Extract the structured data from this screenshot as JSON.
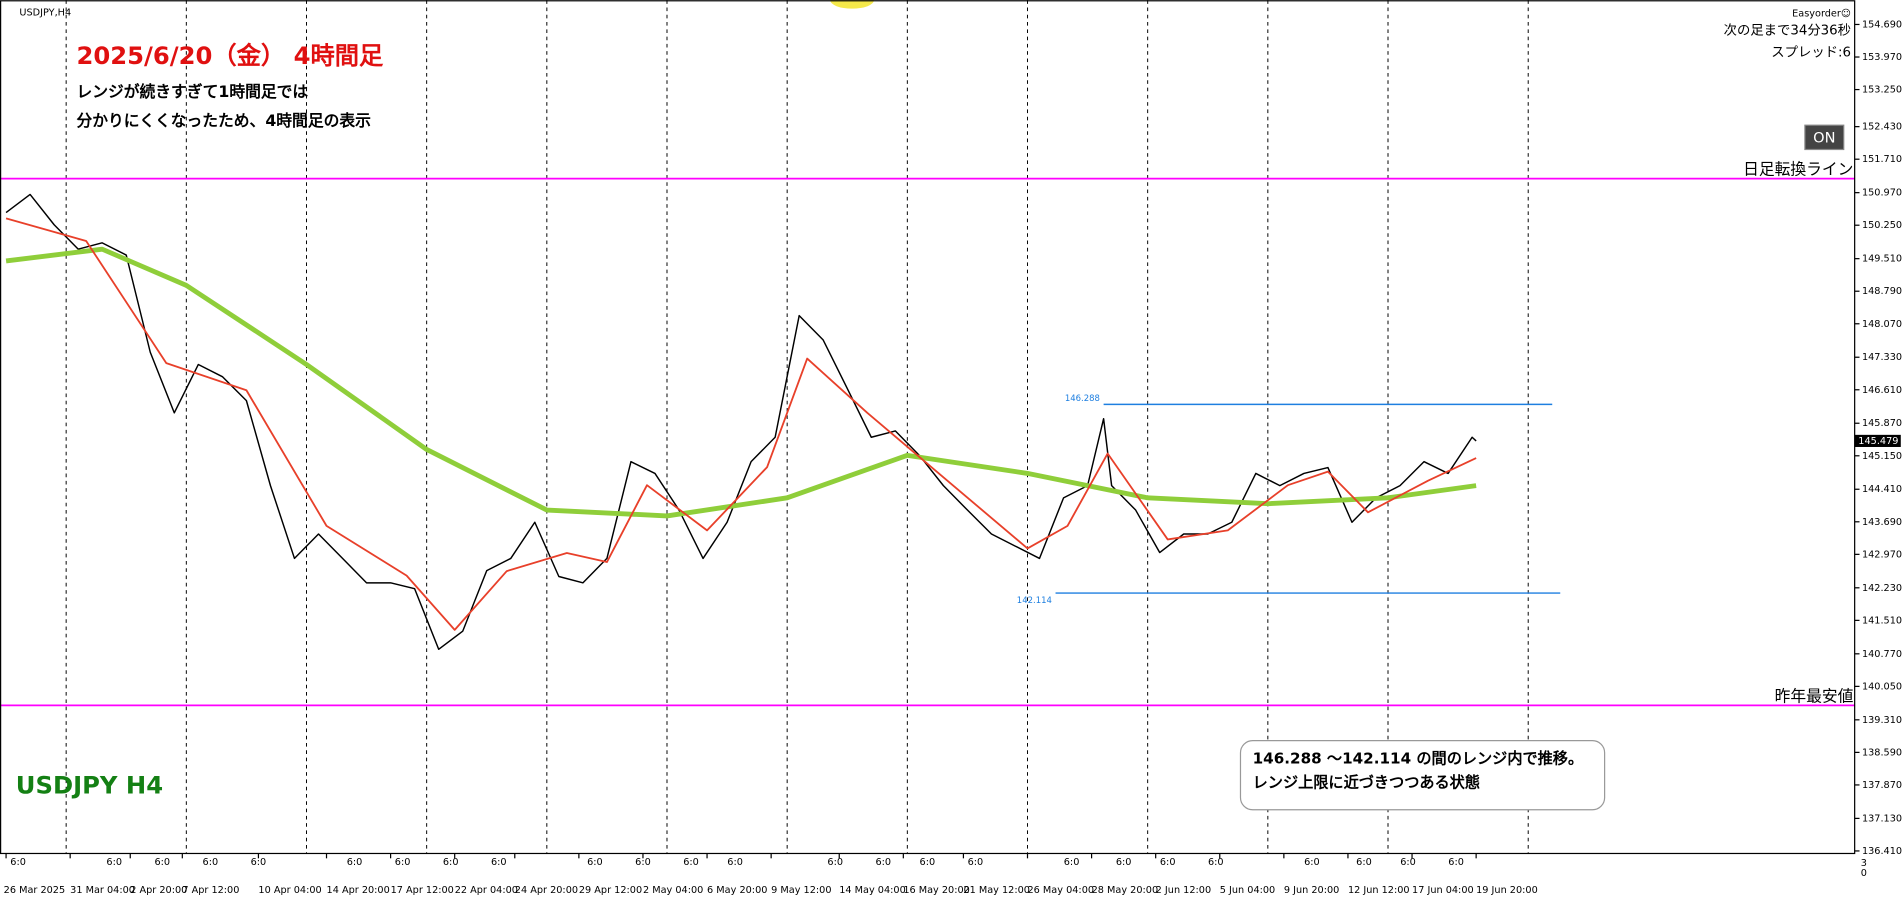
{
  "chart_data": {
    "type": "line",
    "title": "2025/6/20（金）  4時間足",
    "notes": [
      "レンジが続きすぎて1時間足では",
      "分かりにくくなったため、4時間足の表示"
    ],
    "symbol": "USDJPY,H4",
    "watermark": "USDJPY H4",
    "info": [
      "Easyorder☺",
      "次の足まで34分36秒",
      "スプレッド:6"
    ],
    "button": "ON",
    "xlim": [
      -1.515,
      461.5
    ],
    "ylim": [
      136.354,
      155.227
    ],
    "xticks": [
      {
        "value": 0,
        "label": "26 Mar 2025"
      },
      {
        "value": 16,
        "label": "31 Mar 04:00"
      },
      {
        "value": 31,
        "label": "2 Apr 20:00"
      },
      {
        "value": 44,
        "label": "7 Apr 12:00"
      },
      {
        "value": 63,
        "label": "10 Apr 04:00"
      },
      {
        "value": 80,
        "label": "14 Apr 20:00"
      },
      {
        "value": 96,
        "label": "17 Apr 12:00"
      },
      {
        "value": 112,
        "label": "22 Apr 04:00"
      },
      {
        "value": 127,
        "label": "24 Apr 20:00"
      },
      {
        "value": 143,
        "label": "29 Apr 12:00"
      },
      {
        "value": 159,
        "label": "2 May 04:00"
      },
      {
        "value": 175,
        "label": "6 May 20:00"
      },
      {
        "value": 191,
        "label": "9 May 12:00"
      },
      {
        "value": 208,
        "label": "14 May 04:00"
      },
      {
        "value": 224,
        "label": "16 May 20:00"
      },
      {
        "value": 239,
        "label": "21 May 12:00"
      },
      {
        "value": 255,
        "label": "26 May 04:00"
      },
      {
        "value": 271,
        "label": "28 May 20:00"
      },
      {
        "value": 287,
        "label": "2 Jun 12:00"
      },
      {
        "value": 303,
        "label": "5 Jun 04:00"
      },
      {
        "value": 319,
        "label": "9 Jun 20:00"
      },
      {
        "value": 335,
        "label": "12 Jun 12:00"
      },
      {
        "value": 351,
        "label": "17 Jun 04:00"
      },
      {
        "value": 367,
        "label": "19 Jun 20:00"
      }
    ],
    "yticks": [
      {
        "value": 154.69,
        "label": "154.690"
      },
      {
        "value": 153.97,
        "label": "153.970"
      },
      {
        "value": 153.25,
        "label": "153.250"
      },
      {
        "value": 152.43,
        "label": "152.430"
      },
      {
        "value": 151.71,
        "label": "151.710"
      },
      {
        "value": 150.97,
        "label": "150.970"
      },
      {
        "value": 150.25,
        "label": "150.250"
      },
      {
        "value": 149.51,
        "label": "149.510"
      },
      {
        "value": 148.79,
        "label": "148.790"
      },
      {
        "value": 148.07,
        "label": "148.070"
      },
      {
        "value": 147.33,
        "label": "147.330"
      },
      {
        "value": 146.61,
        "label": "146.610"
      },
      {
        "value": 145.87,
        "label": "145.870"
      },
      {
        "value": 145.15,
        "label": "145.150"
      },
      {
        "value": 144.41,
        "label": "144.410"
      },
      {
        "value": 143.69,
        "label": "143.690"
      },
      {
        "value": 142.97,
        "label": "142.970"
      },
      {
        "value": 142.23,
        "label": "142.230"
      },
      {
        "value": 141.51,
        "label": "141.510"
      },
      {
        "value": 140.77,
        "label": "140.770"
      },
      {
        "value": 140.05,
        "label": "140.050"
      },
      {
        "value": 139.31,
        "label": "139.310"
      },
      {
        "value": 138.59,
        "label": "138.590"
      },
      {
        "value": 137.87,
        "label": "137.870"
      },
      {
        "value": 137.13,
        "label": "137.130"
      },
      {
        "value": 136.41,
        "label": "136.410"
      }
    ],
    "period_separators": [
      15,
      45,
      75,
      105,
      135,
      165,
      195,
      225,
      255,
      285,
      315,
      345,
      380
    ],
    "session_labels": {
      "label": "6:0",
      "x": [
        3,
        27,
        39,
        51,
        63,
        87,
        99,
        111,
        123,
        147,
        159,
        171,
        182,
        207,
        219,
        230,
        242,
        266,
        279,
        290,
        302,
        326,
        339,
        350,
        362
      ]
    },
    "series": [
      {
        "color": "#000000",
        "width": 1.2,
        "x": [
          0,
          6,
          12,
          18,
          24,
          30,
          36,
          42,
          48,
          54,
          60,
          66,
          72,
          78,
          84,
          90,
          96,
          102,
          108,
          114,
          120,
          126,
          132,
          138,
          144,
          150,
          156,
          162,
          168,
          174,
          180,
          186,
          192,
          198,
          204,
          210,
          216,
          222,
          228,
          234,
          240,
          246,
          252,
          258,
          264,
          270,
          274,
          276,
          282,
          288,
          294,
          300,
          306,
          312,
          318,
          324,
          330,
          336,
          342,
          348,
          354,
          360,
          366,
          367
        ],
        "values": [
          150.53,
          150.93,
          150.26,
          149.72,
          149.86,
          149.59,
          147.44,
          146.1,
          147.17,
          146.9,
          146.37,
          144.49,
          142.88,
          143.42,
          142.88,
          142.34,
          142.34,
          142.21,
          140.87,
          141.27,
          142.61,
          142.88,
          143.68,
          142.48,
          142.34,
          142.88,
          145.02,
          144.76,
          143.95,
          142.88,
          143.68,
          145.02,
          145.56,
          148.25,
          147.71,
          146.64,
          145.56,
          145.7,
          145.16,
          144.49,
          143.95,
          143.42,
          143.15,
          142.88,
          144.22,
          144.49,
          145.97,
          144.49,
          143.95,
          143.01,
          143.42,
          143.42,
          143.68,
          144.76,
          144.49,
          144.76,
          144.89,
          143.68,
          144.22,
          144.49,
          145.02,
          144.76,
          145.56,
          145.479
        ]
      },
      {
        "color": "#8fce3a",
        "width": 4,
        "x": [
          0,
          24,
          45,
          75,
          105,
          135,
          165,
          195,
          225,
          255,
          285,
          315,
          345,
          367
        ],
        "values": [
          149.46,
          149.72,
          148.92,
          147.17,
          145.29,
          143.95,
          143.82,
          144.22,
          145.16,
          144.76,
          144.22,
          144.09,
          144.22,
          144.49
        ]
      },
      {
        "color": "#e8402a",
        "width": 1.5,
        "x": [
          0,
          20,
          40,
          60,
          80,
          100,
          112,
          125,
          140,
          150,
          160,
          175,
          190,
          200,
          215,
          235,
          255,
          265,
          275,
          290,
          305,
          320,
          330,
          340,
          355,
          367
        ],
        "values": [
          150.4,
          149.9,
          147.2,
          146.6,
          143.6,
          142.5,
          141.3,
          142.6,
          143.0,
          142.8,
          144.5,
          143.5,
          144.9,
          147.3,
          146.1,
          144.6,
          143.1,
          143.6,
          145.2,
          143.3,
          143.5,
          144.5,
          144.8,
          143.9,
          144.6,
          145.1
        ]
      }
    ],
    "hlines": [
      {
        "value": 151.28,
        "label": "日足転換ライン",
        "color": "#ff00ff"
      },
      {
        "value": 139.63,
        "label": "昨年最安値",
        "color": "#ff00ff"
      }
    ],
    "range_lines": [
      {
        "value": 146.288,
        "x": [
          274,
          386
        ],
        "color": "#1e7fe0"
      },
      {
        "value": 142.114,
        "x": [
          262,
          388
        ],
        "color": "#1e7fe0"
      }
    ],
    "last_price": 145.479,
    "annotation": [
      "146.288 ～142.114 の間のレンジ内で推移。",
      "レンジ上限に近づきつつある状態"
    ],
    "axis_footer": [
      "3",
      "0"
    ]
  }
}
